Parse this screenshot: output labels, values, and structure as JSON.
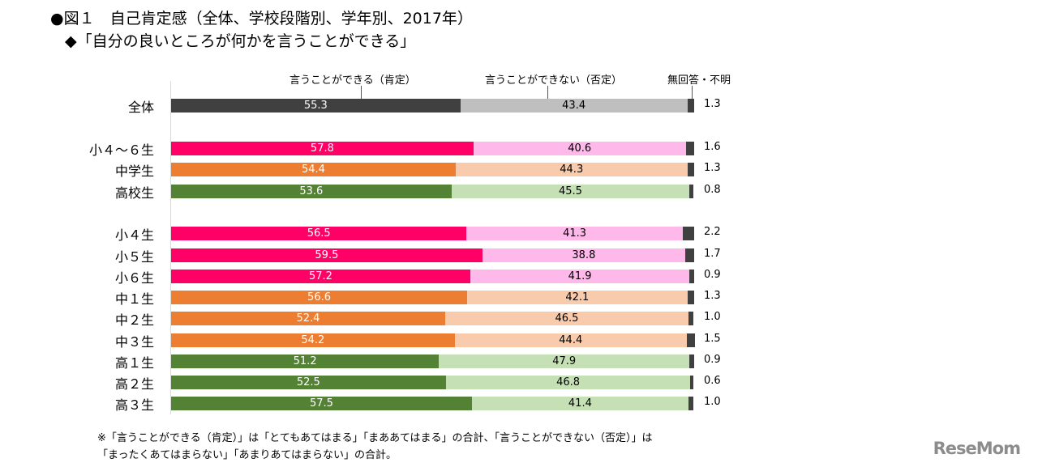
{
  "title": "●図１　自己肯定感（全体、学校段階別、学年別、2017年）",
  "subtitle": "◆「自分の良いところが何かを言うことができる」",
  "chart_data": {
    "type": "bar",
    "stacked": true,
    "orientation": "horizontal",
    "xlim": [
      0,
      100
    ],
    "legend_placement": "top",
    "series_names": [
      "言うことができる（肯定）",
      "言うことができない（否定）",
      "無回答・不明"
    ],
    "categories": [
      "全体",
      "小４～６生",
      "中学生",
      "高校生",
      "小４生",
      "小５生",
      "小６生",
      "中１生",
      "中２生",
      "中３生",
      "高１生",
      "高２生",
      "高３生"
    ],
    "groups": [
      "total",
      "elem",
      "mid",
      "high",
      "elem",
      "elem",
      "elem",
      "mid",
      "mid",
      "mid",
      "high",
      "high",
      "high"
    ],
    "series": [
      {
        "name": "言うことができる（肯定）",
        "values": [
          55.3,
          57.8,
          54.4,
          53.6,
          56.5,
          59.5,
          57.2,
          56.6,
          52.4,
          54.2,
          51.2,
          52.5,
          57.5
        ]
      },
      {
        "name": "言うことができない（否定）",
        "values": [
          43.4,
          40.6,
          44.3,
          45.5,
          41.3,
          38.8,
          41.9,
          42.1,
          46.5,
          44.4,
          47.9,
          46.8,
          41.4
        ]
      },
      {
        "name": "無回答・不明",
        "values": [
          1.3,
          1.6,
          1.3,
          0.8,
          2.2,
          1.7,
          0.9,
          1.3,
          1.0,
          1.5,
          0.9,
          0.6,
          1.0
        ]
      }
    ],
    "colors": {
      "total": [
        "#404040",
        "#bfbfbf",
        "#404040"
      ],
      "elem": [
        "#ff0066",
        "#ffb8ea",
        "#404040"
      ],
      "mid": [
        "#ed7d31",
        "#f8cbad",
        "#404040"
      ],
      "high": [
        "#548235",
        "#c5e0b4",
        "#404040"
      ]
    }
  },
  "note_line1": "※「言うことができる（肯定）」は「とてもあてはまる」「まああてはまる」の合計、「言うことができない（否定）」は",
  "note_line2": "「まったくあてはまらない」「あまりあてはまらない」の合計。",
  "logo": "ReseMom"
}
